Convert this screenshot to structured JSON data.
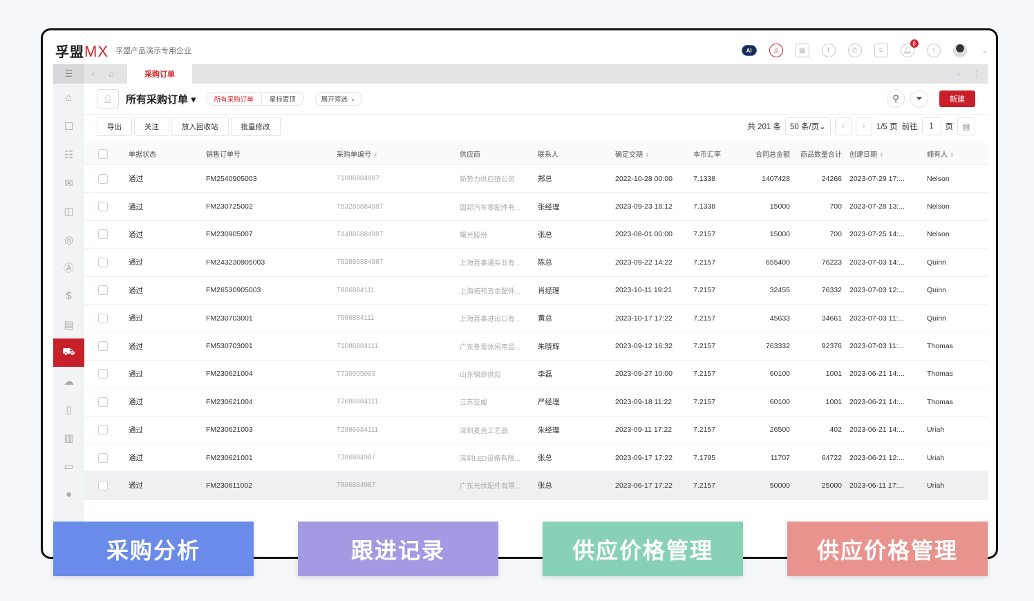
{
  "header": {
    "logo_cn": "孚盟",
    "logo_mx": "MX",
    "company": "孚盟产品演示专用企业",
    "notification_count": "8",
    "ai_label": "AI"
  },
  "icons": [
    "ai-assistant-icon",
    "headset-icon",
    "apps-grid-icon",
    "t-circle-icon",
    "whatsapp-icon",
    "schedule-icon",
    "bell-icon",
    "help-icon"
  ],
  "tabs": {
    "active": "采购订单"
  },
  "sidebar": {
    "items": [
      "home-icon",
      "contact-icon",
      "org-tree-icon",
      "mail-icon",
      "bag-icon",
      "compass-icon",
      "a-circle-icon",
      "dollar-case-icon",
      "printer-icon",
      "truck-icon",
      "cloud-icon",
      "book-icon",
      "bar-chart-icon",
      "monitor-icon",
      "chat-icon"
    ],
    "active_index": 9
  },
  "toolbar": {
    "view_title": "所有采购订单",
    "seg_all": "所有采购订单",
    "seg_star": "星标置顶",
    "expand_filter": "展开筛选",
    "new": "新建"
  },
  "actions": {
    "export": "导出",
    "follow": "关注",
    "recycle": "放入回收站",
    "batch_edit": "批量修改"
  },
  "pager": {
    "total": "共 201 条",
    "page_size": "50 条/页",
    "page_info": "1/5 页",
    "goto": "前往",
    "page": "1",
    "page_unit": "页"
  },
  "columns": [
    "单据状态",
    "销售订单号",
    "采购单编号",
    "供应商",
    "联系人",
    "确定交期",
    "本币汇率",
    "合同总金额",
    "商品数量合计",
    "创建日期",
    "拥有人"
  ],
  "rows": [
    [
      "通过",
      "FM2540905003",
      "T1886884987",
      "新势力供应链公司",
      "郑总",
      "2022-10-28 00:00",
      "7.1338",
      "1407428",
      "24266",
      "2023-07-29 17:...",
      "Nelson"
    ],
    [
      "通过",
      "FM230725002",
      "T53286884987",
      "国邦汽车零配件有...",
      "张经理",
      "2023-09-23 18:12",
      "7.1338",
      "15000",
      "700",
      "2023-07-28 13:...",
      "Nelson"
    ],
    [
      "通过",
      "FM230905007",
      "T44886884987",
      "曙光股份",
      "张总",
      "2023-08-01 00:00",
      "7.2157",
      "15000",
      "700",
      "2023-07-25 14:...",
      "Nelson"
    ],
    [
      "通过",
      "FM243230905003",
      "T92886884987",
      "上海百事通实业有...",
      "陈总",
      "2023-09-22 14:22",
      "7.2157",
      "655400",
      "76223",
      "2023-07-03 14:...",
      "Quinn"
    ],
    [
      "通过",
      "FM26530905003",
      "T886884111",
      "上海拓邦五金配件...",
      "肖经理",
      "2023-10-11 19:21",
      "7.2157",
      "32455",
      "76332",
      "2023-07-03 12:...",
      "Quinn"
    ],
    [
      "通过",
      "FM230703001",
      "T986884111",
      "上海百事进出口有...",
      "黄总",
      "2023-10-17 17:22",
      "7.2157",
      "45633",
      "34661",
      "2023-07-03 11:...",
      "Quinn"
    ],
    [
      "通过",
      "FM530703001",
      "T1086884111",
      "广东圣雪休闲用品...",
      "朱晓辉",
      "2023-09-12 16:32",
      "7.2157",
      "763332",
      "92376",
      "2023-07-03 11:...",
      "Thomas"
    ],
    [
      "通过",
      "FM230621004",
      "T730905003",
      "山东锦源供应",
      "李磊",
      "2023-09-27 10:00",
      "7.2157",
      "60100",
      "1001",
      "2023-06-21 14:...",
      "Thomas"
    ],
    [
      "通过",
      "FM230621004",
      "T7686884111",
      "江苏亚威",
      "严经理",
      "2023-09-18 11:22",
      "7.2157",
      "60100",
      "1001",
      "2023-06-21 14:...",
      "Thomas"
    ],
    [
      "通过",
      "FM230621003",
      "T2886884111",
      "深圳麦克工艺品",
      "朱经理",
      "2023-09-11 17:22",
      "7.2157",
      "26500",
      "402",
      "2023-06-21 14:...",
      "Uriah"
    ],
    [
      "通过",
      "FM230621001",
      "T386884987",
      "深圳LED设备有限...",
      "张总",
      "2023-09-17 17:22",
      "7.1795",
      "11707",
      "64722",
      "2023-06-21 12:...",
      "Uriah"
    ],
    [
      "通过",
      "FM230611002",
      "T886884987",
      "广东光伏配件有限...",
      "张总",
      "2023-06-17 17:22",
      "7.2157",
      "50000",
      "25000",
      "2023-06-11 17:...",
      "Uriah"
    ]
  ],
  "cards": [
    {
      "label": "采购分析",
      "color": "#6b8bea"
    },
    {
      "label": "跟进记录",
      "color": "#a39ae3"
    },
    {
      "label": "供应价格管理",
      "color": "#88d1b6"
    },
    {
      "label": "供应价格管理",
      "color": "#e9938f"
    }
  ],
  "colors": {
    "accent": "#c8202a"
  }
}
